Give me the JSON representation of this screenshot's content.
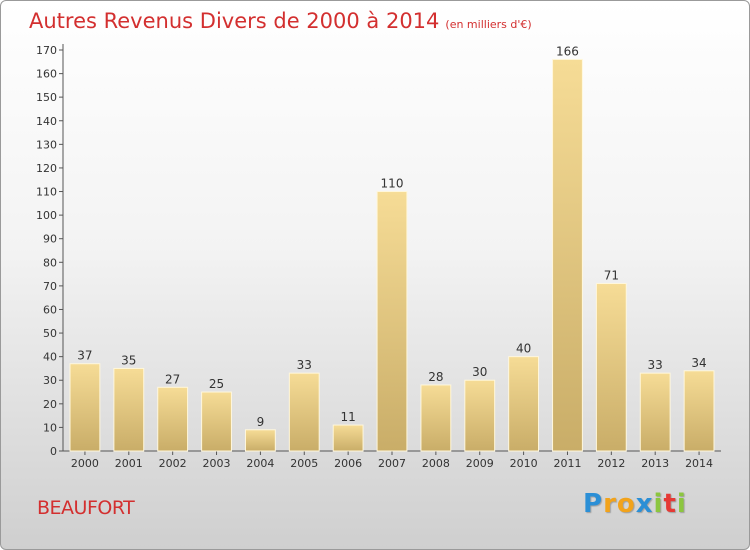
{
  "title": "Autres Revenus Divers de 2000 à 2014",
  "subtitle": "(en milliers d'€)",
  "place_name": "BEAUFORT",
  "brand": {
    "letters": [
      "P",
      "r",
      "o",
      "x",
      "i",
      "t",
      "i"
    ],
    "colors": [
      "#2b8fd6",
      "#f2a31b",
      "#f2a31b",
      "#2b8fd6",
      "#8cc63f",
      "#e53935",
      "#8cc63f"
    ]
  },
  "colors": {
    "bar_top": "#f6dc96",
    "bar_bottom": "#c9ad68",
    "text": "#333333",
    "accent": "#d32f2f"
  },
  "chart_data": {
    "type": "bar",
    "title": "Autres Revenus Divers de 2000 à 2014",
    "subtitle": "(en milliers d'€)",
    "categories": [
      "2000",
      "2001",
      "2002",
      "2003",
      "2004",
      "2005",
      "2006",
      "2007",
      "2008",
      "2009",
      "2010",
      "2011",
      "2012",
      "2013",
      "2014"
    ],
    "values": [
      37,
      35,
      27,
      25,
      9,
      33,
      11,
      110,
      28,
      30,
      40,
      166,
      71,
      33,
      34
    ],
    "ylim": [
      0,
      170
    ],
    "yticks": [
      0,
      10,
      20,
      30,
      40,
      50,
      60,
      70,
      80,
      90,
      100,
      110,
      120,
      130,
      140,
      150,
      160,
      170
    ],
    "grid": false,
    "data_labels": true
  }
}
